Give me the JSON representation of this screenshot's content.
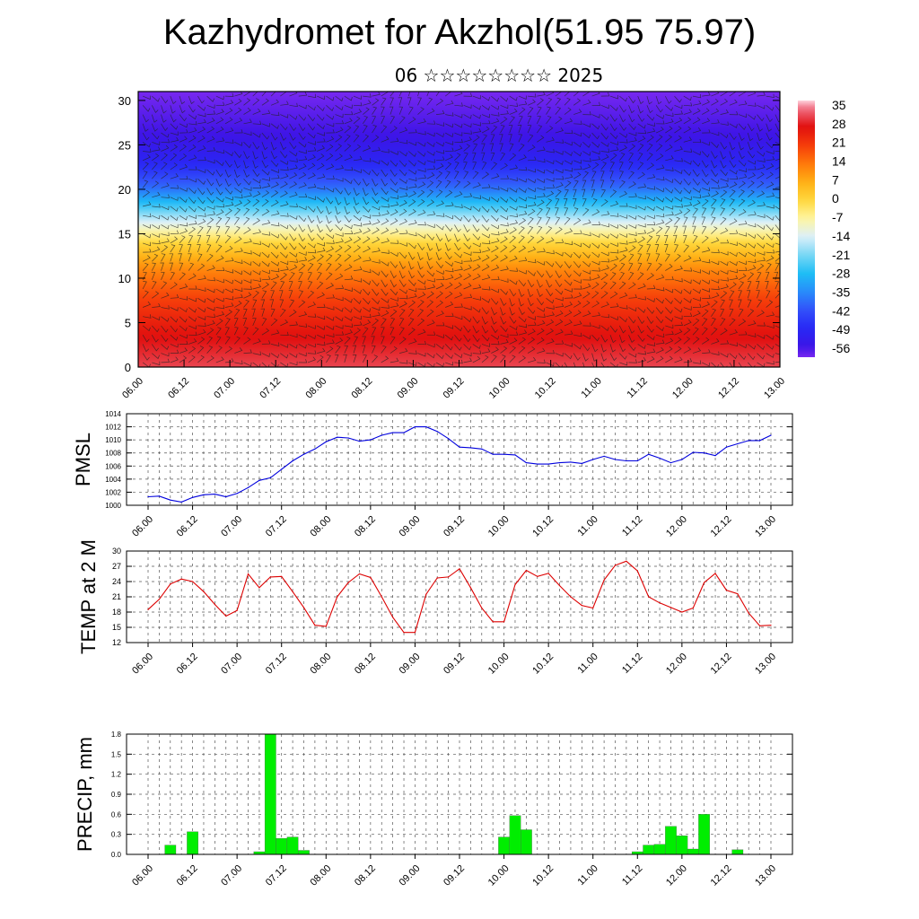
{
  "page": {
    "title": "Kazhydromet for Akzhol(51.95 75.97)",
    "subtitle": "06 ☆☆☆☆☆☆☆☆ 2025"
  },
  "colors": {
    "pmsl_line": "#0000dd",
    "temp_line": "#dd0000",
    "precip_bar": "#00ee00",
    "grid": "#555555"
  },
  "chart_data": [
    {
      "id": "upper_air",
      "type": "heatmap",
      "title": "",
      "xlabel": "",
      "ylabel": "",
      "x_ticks": [
        "06.00",
        "06.12",
        "07.00",
        "07.12",
        "08.00",
        "08.12",
        "09.00",
        "09.12",
        "10.00",
        "10.12",
        "11.00",
        "11.12",
        "12.00",
        "12.12",
        "13.00"
      ],
      "y_ticks": [
        "0",
        "5",
        "10",
        "15",
        "20",
        "25",
        "30"
      ],
      "ylim": [
        0,
        31
      ],
      "overlay": "wind barbs",
      "colorbar": {
        "labels": [
          "35",
          "28",
          "21",
          "14",
          "7",
          "0",
          "-7",
          "-14",
          "-21",
          "-28",
          "-35",
          "-42",
          "-49",
          "-56"
        ],
        "range": [
          -60,
          38
        ]
      },
      "level_temperature_profile": [
        {
          "level": 0,
          "value": 32
        },
        {
          "level": 4,
          "value": 27
        },
        {
          "level": 8,
          "value": 20
        },
        {
          "level": 11,
          "value": 12
        },
        {
          "level": 14,
          "value": 0
        },
        {
          "level": 16,
          "value": -12
        },
        {
          "level": 18,
          "value": -25
        },
        {
          "level": 20,
          "value": -38
        },
        {
          "level": 23,
          "value": -50
        },
        {
          "level": 26,
          "value": -56
        },
        {
          "level": 31,
          "value": -60
        }
      ]
    },
    {
      "id": "pmsl",
      "type": "line",
      "ylabel": "PMSL",
      "x_ticks": [
        "06.00",
        "06.12",
        "07.00",
        "07.12",
        "08.00",
        "08.12",
        "09.00",
        "09.12",
        "10.00",
        "10.12",
        "11.00",
        "11.12",
        "12.00",
        "12.12",
        "13.00"
      ],
      "y_ticks": [
        "1000",
        "1002",
        "1004",
        "1006",
        "1008",
        "1010",
        "1012",
        "1014"
      ],
      "ylim": [
        1000,
        1014
      ],
      "x": [
        0,
        3,
        6,
        9,
        12,
        15,
        18,
        21,
        24,
        27,
        30,
        33,
        36,
        39,
        42,
        45,
        48,
        51,
        54,
        57,
        60,
        63,
        66,
        69,
        72,
        75,
        78,
        81,
        84,
        87,
        90,
        93,
        96,
        99,
        102,
        105,
        108,
        111,
        114,
        117,
        120,
        123,
        126,
        129,
        132,
        135,
        138,
        141,
        144,
        147,
        150,
        153,
        156,
        159,
        162,
        165,
        168
      ],
      "values": [
        1001.3,
        1001.4,
        1000.8,
        1000.5,
        1001.2,
        1001.6,
        1001.7,
        1001.3,
        1001.8,
        1002.7,
        1003.8,
        1004.2,
        1005.5,
        1006.8,
        1007.8,
        1008.6,
        1009.7,
        1010.4,
        1010.3,
        1009.8,
        1010.0,
        1010.7,
        1011.1,
        1011.1,
        1012.0,
        1012.0,
        1011.3,
        1010.2,
        1008.9,
        1008.8,
        1008.6,
        1007.8,
        1007.8,
        1007.7,
        1006.5,
        1006.3,
        1006.3,
        1006.5,
        1006.6,
        1006.4,
        1007.0,
        1007.5,
        1007.0,
        1006.8,
        1006.8,
        1007.8,
        1007.2,
        1006.5,
        1007.0,
        1008.1,
        1008.0,
        1007.6,
        1008.9,
        1009.4,
        1009.9,
        1009.9,
        1010.7
      ]
    },
    {
      "id": "temp2m",
      "type": "line",
      "ylabel": "TEMP at 2 M",
      "x_ticks": [
        "06.00",
        "06.12",
        "07.00",
        "07.12",
        "08.00",
        "08.12",
        "09.00",
        "09.12",
        "10.00",
        "10.12",
        "11.00",
        "11.12",
        "12.00",
        "12.12",
        "13.00"
      ],
      "y_ticks": [
        "12",
        "15",
        "18",
        "21",
        "24",
        "27",
        "30"
      ],
      "ylim": [
        12,
        30
      ],
      "x": [
        0,
        3,
        6,
        9,
        12,
        15,
        18,
        21,
        24,
        27,
        30,
        33,
        36,
        39,
        42,
        45,
        48,
        51,
        54,
        57,
        60,
        63,
        66,
        69,
        72,
        75,
        78,
        81,
        84,
        87,
        90,
        93,
        96,
        99,
        102,
        105,
        108,
        111,
        114,
        117,
        120,
        123,
        126,
        129,
        132,
        135,
        138,
        141,
        144,
        147,
        150,
        153,
        156,
        159,
        162,
        165,
        168
      ],
      "values": [
        18.5,
        20.5,
        23.5,
        24.5,
        24.0,
        22.0,
        19.5,
        17.2,
        18.3,
        25.5,
        22.8,
        24.9,
        25.0,
        22.0,
        18.9,
        15.4,
        15.2,
        21.0,
        23.8,
        25.5,
        24.8,
        21.0,
        17.0,
        14.0,
        14.0,
        21.5,
        24.7,
        24.9,
        26.5,
        22.8,
        18.8,
        16.1,
        16.1,
        23.4,
        26.2,
        25.0,
        25.6,
        23.2,
        21.0,
        19.3,
        18.8,
        24.3,
        27.2,
        28.0,
        26.1,
        21.0,
        19.8,
        18.9,
        18.0,
        18.8,
        23.8,
        25.6,
        22.3,
        21.6,
        17.8,
        15.3,
        15.4
      ]
    },
    {
      "id": "precip",
      "type": "bar",
      "ylabel": "PRECIP, mm",
      "x_ticks": [
        "06.00",
        "06.12",
        "07.00",
        "07.12",
        "08.00",
        "08.12",
        "09.00",
        "09.12",
        "10.00",
        "10.12",
        "11.00",
        "11.12",
        "12.00",
        "12.12",
        "13.00"
      ],
      "y_ticks": [
        "0.0",
        "0.3",
        "0.6",
        "0.9",
        "1.2",
        "1.5",
        "1.8"
      ],
      "ylim": [
        0,
        1.8
      ],
      "bar_width_hours": 3,
      "x": [
        6,
        12,
        30,
        33,
        36,
        39,
        42,
        96,
        99,
        102,
        132,
        135,
        138,
        141,
        144,
        147,
        150,
        159
      ],
      "values": [
        0.14,
        0.34,
        0.04,
        1.8,
        0.24,
        0.26,
        0.06,
        0.26,
        0.58,
        0.37,
        0.04,
        0.14,
        0.15,
        0.42,
        0.28,
        0.08,
        0.6,
        0.07
      ]
    }
  ]
}
